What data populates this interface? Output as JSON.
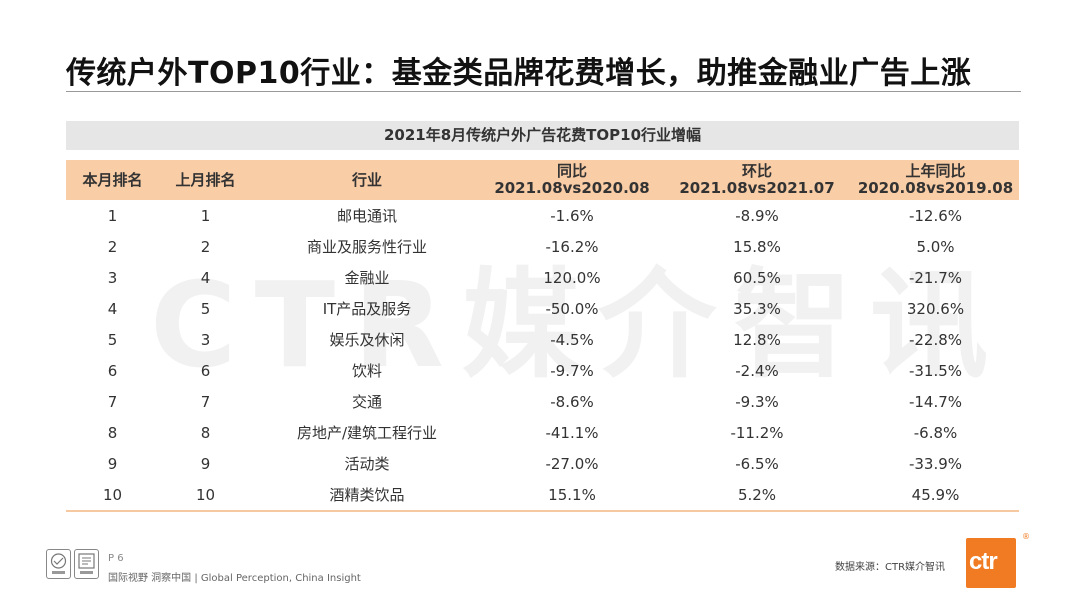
{
  "title": "传统户外TOP10行业：基金类品牌花费增长，助推金融业广告上涨",
  "watermark": "CTR媒介智讯",
  "table": {
    "caption": "2021年8月传统户外广告花费TOP10行业增幅",
    "headers": [
      {
        "line1": "本月排名",
        "line2": ""
      },
      {
        "line1": "上月排名",
        "line2": ""
      },
      {
        "line1": "行业",
        "line2": ""
      },
      {
        "line1": "同比",
        "line2": "2021.08vs2020.08"
      },
      {
        "line1": "环比",
        "line2": "2021.08vs2021.07"
      },
      {
        "line1": "上年同比",
        "line2": "2020.08vs2019.08"
      }
    ],
    "rows": [
      [
        "1",
        "1",
        "邮电通讯",
        "-1.6%",
        "-8.9%",
        "-12.6%"
      ],
      [
        "2",
        "2",
        "商业及服务性行业",
        "-16.2%",
        "15.8%",
        "5.0%"
      ],
      [
        "3",
        "4",
        "金融业",
        "120.0%",
        "60.5%",
        "-21.7%"
      ],
      [
        "4",
        "5",
        "IT产品及服务",
        "-50.0%",
        "35.3%",
        "320.6%"
      ],
      [
        "5",
        "3",
        "娱乐及休闲",
        "-4.5%",
        "12.8%",
        "-22.8%"
      ],
      [
        "6",
        "6",
        "饮料",
        "-9.7%",
        "-2.4%",
        "-31.5%"
      ],
      [
        "7",
        "7",
        "交通",
        "-8.6%",
        "-9.3%",
        "-14.7%"
      ],
      [
        "8",
        "8",
        "房地产/建筑工程行业",
        "-41.1%",
        "-11.2%",
        "-6.8%"
      ],
      [
        "9",
        "9",
        "活动类",
        "-27.0%",
        "-6.5%",
        "-33.9%"
      ],
      [
        "10",
        "10",
        "酒精类饮品",
        "15.1%",
        "5.2%",
        "45.9%"
      ]
    ]
  },
  "footer": {
    "page": "P 6",
    "slogan": "国际视野  洞察中国 | Global Perception, China Insight",
    "source": "数据来源：CTR媒介智讯",
    "logo_text": "ctr",
    "logo_mark": "®",
    "cert_icons": [
      "certification-badge-icon",
      "quality-mark-icon"
    ]
  },
  "colors": {
    "header_bg": "#f9cda6",
    "caption_bg": "#e6e6e6",
    "brand_orange": "#f07b22"
  }
}
